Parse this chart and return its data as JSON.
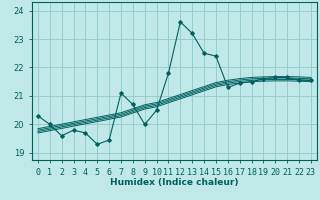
{
  "title": "",
  "xlabel": "Humidex (Indice chaleur)",
  "background_color": "#c0e8e8",
  "grid_color": "#90c8c8",
  "line_color": "#006060",
  "x_values": [
    0,
    1,
    2,
    3,
    4,
    5,
    6,
    7,
    8,
    9,
    10,
    11,
    12,
    13,
    14,
    15,
    16,
    17,
    18,
    19,
    20,
    21,
    22,
    23
  ],
  "y_main": [
    20.3,
    20.0,
    19.6,
    19.8,
    19.7,
    19.3,
    19.45,
    21.1,
    20.7,
    20.0,
    20.5,
    21.8,
    23.6,
    23.2,
    22.5,
    22.4,
    21.3,
    21.45,
    21.5,
    21.6,
    21.65,
    21.65,
    21.55,
    21.55
  ],
  "y_band1": [
    19.7,
    19.78,
    19.86,
    19.94,
    20.02,
    20.1,
    20.18,
    20.26,
    20.4,
    20.54,
    20.62,
    20.76,
    20.9,
    21.04,
    21.18,
    21.32,
    21.4,
    21.46,
    21.5,
    21.52,
    21.53,
    21.53,
    21.52,
    21.5
  ],
  "y_band2": [
    19.75,
    19.83,
    19.91,
    19.99,
    20.07,
    20.15,
    20.23,
    20.31,
    20.45,
    20.59,
    20.67,
    20.81,
    20.95,
    21.09,
    21.23,
    21.37,
    21.45,
    21.51,
    21.55,
    21.57,
    21.58,
    21.58,
    21.57,
    21.55
  ],
  "y_band3": [
    19.8,
    19.88,
    19.96,
    20.04,
    20.12,
    20.2,
    20.28,
    20.36,
    20.5,
    20.64,
    20.72,
    20.86,
    21.0,
    21.14,
    21.28,
    21.42,
    21.5,
    21.56,
    21.6,
    21.62,
    21.63,
    21.63,
    21.62,
    21.6
  ],
  "y_band4": [
    19.85,
    19.93,
    20.01,
    20.09,
    20.17,
    20.25,
    20.33,
    20.41,
    20.55,
    20.69,
    20.77,
    20.91,
    21.05,
    21.19,
    21.33,
    21.47,
    21.55,
    21.61,
    21.65,
    21.67,
    21.68,
    21.68,
    21.67,
    21.65
  ],
  "ylim": [
    18.75,
    24.3
  ],
  "xlim": [
    -0.5,
    23.5
  ],
  "yticks": [
    19,
    20,
    21,
    22,
    23,
    24
  ],
  "xtick_labels": [
    "0",
    "1",
    "2",
    "3",
    "4",
    "5",
    "6",
    "7",
    "8",
    "9",
    "10",
    "11",
    "12",
    "13",
    "14",
    "15",
    "16",
    "17",
    "18",
    "19",
    "20",
    "21",
    "22",
    "23"
  ],
  "xlabel_fontsize": 6.5,
  "tick_fontsize": 6.0
}
